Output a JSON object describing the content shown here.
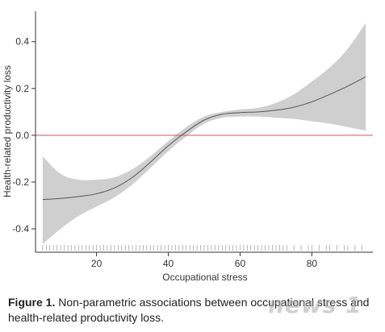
{
  "chart_data": {
    "type": "line",
    "title": "",
    "xlabel": "Occupational stress",
    "ylabel": "Health-related productivity loss",
    "xlim": [
      3,
      97
    ],
    "ylim": [
      -0.5,
      0.53
    ],
    "xticks": [
      20,
      40,
      60,
      80
    ],
    "yticks": [
      -0.4,
      -0.2,
      0.0,
      0.2,
      0.4
    ],
    "xtick_labels": [
      "20",
      "40",
      "60",
      "80"
    ],
    "ytick_labels": [
      "-0.4",
      "-0.2",
      "0.0",
      "0.2",
      "0.4"
    ],
    "reference_line": {
      "y": 0.0,
      "color": "#d9534f"
    },
    "grid": false,
    "series": [
      {
        "x": [
          5,
          10,
          15,
          20,
          25,
          30,
          35,
          40,
          45,
          50,
          55,
          60,
          65,
          70,
          75,
          80,
          85,
          90,
          95
        ],
        "y": [
          -0.275,
          -0.27,
          -0.262,
          -0.25,
          -0.225,
          -0.18,
          -0.115,
          -0.045,
          0.015,
          0.065,
          0.09,
          0.097,
          0.1,
          0.107,
          0.12,
          0.143,
          0.175,
          0.21,
          0.25
        ],
        "lower": [
          -0.465,
          -0.4,
          -0.345,
          -0.305,
          -0.265,
          -0.21,
          -0.14,
          -0.068,
          -0.005,
          0.05,
          0.075,
          0.08,
          0.08,
          0.075,
          0.07,
          0.06,
          0.05,
          0.035,
          0.02
        ],
        "upper": [
          -0.09,
          -0.165,
          -0.19,
          -0.19,
          -0.18,
          -0.145,
          -0.09,
          -0.025,
          0.035,
          0.08,
          0.1,
          0.11,
          0.117,
          0.138,
          0.175,
          0.23,
          0.29,
          0.37,
          0.48
        ],
        "line_color": "#555555",
        "band_color": "#cfcfcf"
      }
    ],
    "rug": [
      5,
      6,
      7,
      8,
      9,
      10,
      11,
      12,
      13,
      14,
      15,
      16,
      17,
      18,
      19,
      20,
      21,
      22,
      23,
      24,
      25,
      26,
      27,
      28,
      29,
      30,
      31,
      32,
      33,
      34,
      35,
      36,
      37,
      38,
      39,
      40,
      41,
      42,
      43,
      44,
      45,
      46,
      47,
      48,
      49,
      50,
      51,
      52,
      53,
      54,
      55,
      56,
      57,
      58,
      59,
      60,
      61,
      62,
      63,
      64,
      65,
      66,
      67,
      68,
      69,
      70,
      71,
      72,
      73,
      75,
      77,
      79,
      80,
      82,
      84,
      85,
      87,
      89,
      90,
      92,
      94
    ]
  },
  "caption": {
    "label": "Figure 1.",
    "text": " Non-parametric associations between occupational stress and health-related productivity loss."
  },
  "watermark": "news 1"
}
